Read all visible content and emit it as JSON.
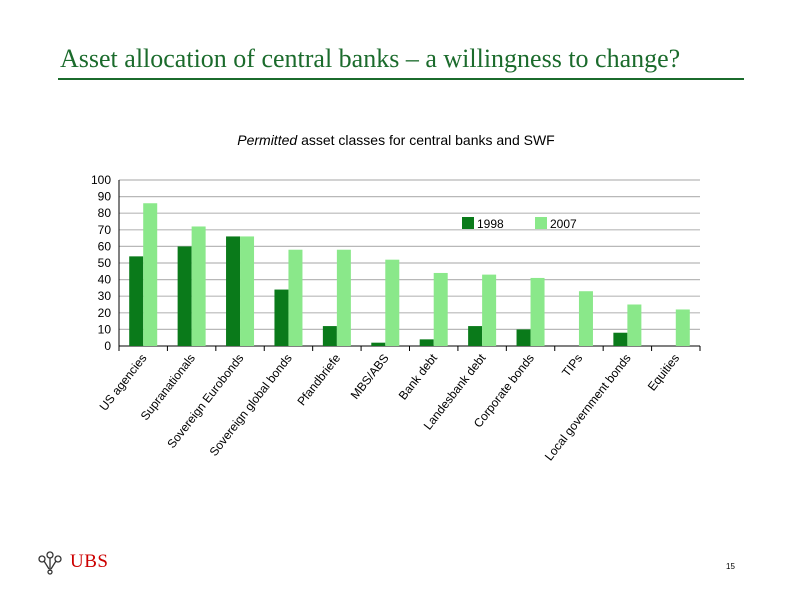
{
  "slide": {
    "title": "Asset allocation of central banks – a willingness to change?",
    "page_number": "15"
  },
  "chart_caption": {
    "italic_part": "Permitted",
    "rest": "asset classes for central banks and SWF"
  },
  "logo": {
    "text": "UBS",
    "icon": "three-keys-emblem-icon"
  },
  "colors": {
    "title_green": "#1b6b2c",
    "series_1998": "#0a7a1a",
    "series_2007": "#8ae88a",
    "grid": "#b8b8b8",
    "logo_red": "#cc0000"
  },
  "chart_data": {
    "type": "bar",
    "title": "Permitted asset classes for central banks and SWF",
    "xlabel": "",
    "ylabel": "",
    "ylim": [
      0,
      100
    ],
    "yticks": [
      0,
      10,
      20,
      30,
      40,
      50,
      60,
      70,
      80,
      90,
      100
    ],
    "grid": true,
    "legend_position": "top-right",
    "categories": [
      "US agencies",
      "Supranationals",
      "Sovereign Eurobonds",
      "Sovereign global bonds",
      "Pfandbriefe",
      "MBS/ABS",
      "Bank debt",
      "Landesbank debt",
      "Corporate bonds",
      "TIPs",
      "Local government bonds",
      "Equities"
    ],
    "series": [
      {
        "name": "1998",
        "values": [
          54,
          60,
          66,
          34,
          12,
          2,
          4,
          12,
          10,
          0,
          8,
          0
        ]
      },
      {
        "name": "2007",
        "values": [
          86,
          72,
          66,
          58,
          58,
          52,
          44,
          43,
          41,
          33,
          25,
          22
        ]
      }
    ]
  }
}
